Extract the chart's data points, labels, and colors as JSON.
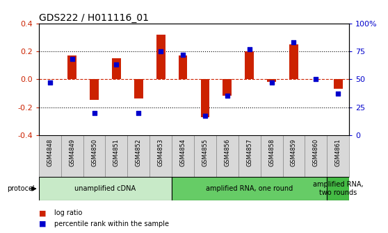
{
  "title": "GDS222 / H011116_01",
  "samples": [
    "GSM4848",
    "GSM4849",
    "GSM4850",
    "GSM4851",
    "GSM4852",
    "GSM4853",
    "GSM4854",
    "GSM4855",
    "GSM4856",
    "GSM4857",
    "GSM4858",
    "GSM4859",
    "GSM4860",
    "GSM4861"
  ],
  "log_ratio": [
    0.0,
    0.17,
    -0.15,
    0.15,
    -0.14,
    0.32,
    0.17,
    -0.27,
    -0.12,
    0.2,
    -0.02,
    0.25,
    0.0,
    -0.07
  ],
  "percentile": [
    47,
    68,
    20,
    63,
    20,
    75,
    72,
    17,
    35,
    77,
    47,
    83,
    50,
    37
  ],
  "bar_color": "#cc2200",
  "dot_color": "#0000cc",
  "ylim": [
    -0.4,
    0.4
  ],
  "y2lim": [
    0,
    100
  ],
  "yticks_left": [
    -0.4,
    -0.2,
    0.0,
    0.2,
    0.4
  ],
  "yticks_right": [
    0,
    25,
    50,
    75,
    100
  ],
  "ytick_labels_right": [
    "0",
    "25",
    "50",
    "75",
    "100%"
  ],
  "hlines_dotted": [
    0.2,
    -0.2
  ],
  "hline_zero_color": "#cc2200",
  "protocol_groups": [
    {
      "label": "unamplified cDNA",
      "start": 0,
      "end": 5,
      "color": "#c8eac8"
    },
    {
      "label": "amplified RNA, one round",
      "start": 6,
      "end": 12,
      "color": "#66cc66"
    },
    {
      "label": "amplified RNA,\ntwo rounds",
      "start": 13,
      "end": 13,
      "color": "#44bb44"
    }
  ],
  "protocol_label": "protocol",
  "legend_items": [
    {
      "color": "#cc2200",
      "label": "log ratio"
    },
    {
      "color": "#0000cc",
      "label": "percentile rank within the sample"
    }
  ],
  "bar_width": 0.4,
  "dot_size": 18,
  "title_fontsize": 10,
  "axis_fontsize": 8,
  "label_fontsize": 6,
  "proto_fontsize": 7,
  "legend_fontsize": 7
}
